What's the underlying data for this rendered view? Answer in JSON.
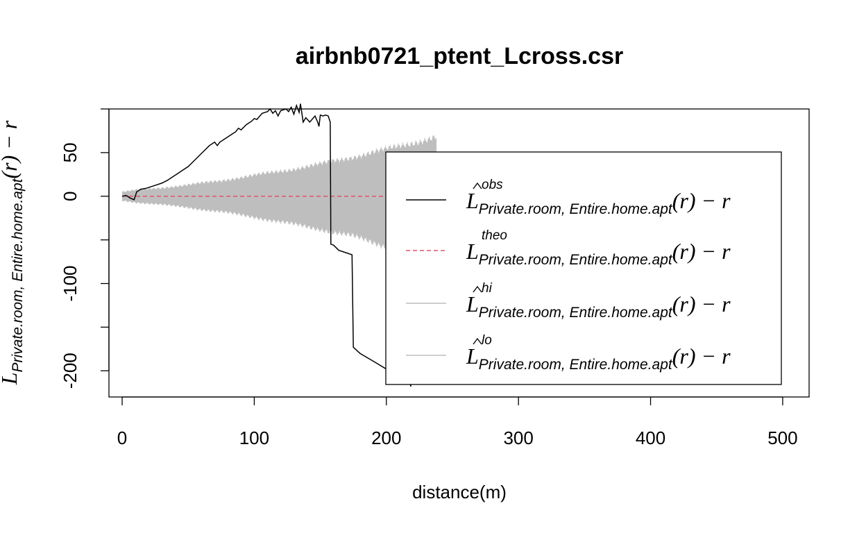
{
  "chart_data": {
    "type": "line",
    "title": "airbnb0721_ptent_Lcross.csr",
    "xlabel": "distance(m)",
    "ylabel": {
      "main": "L",
      "subscript": "Private.room, Entire.home.apt",
      "suffix": "(r) − r"
    },
    "xlim": [
      -10,
      520
    ],
    "ylim": [
      -230,
      100
    ],
    "x_ticks": [
      0,
      100,
      200,
      300,
      400,
      500
    ],
    "x_tick_labels": [
      "0",
      "100",
      "200",
      "300",
      "400",
      "500"
    ],
    "y_ticks": [
      -200,
      -150,
      -100,
      -50,
      0,
      50,
      100
    ],
    "y_tick_labels": [
      "-200",
      "",
      "-100",
      "",
      "0",
      "50",
      ""
    ],
    "grid": false,
    "legend_position": "right",
    "series": [
      {
        "name": "obs",
        "color": "#000000",
        "style": "solid",
        "x": [
          0,
          3,
          6,
          9,
          11,
          14,
          18,
          22,
          26,
          30,
          34,
          38,
          42,
          46,
          50,
          54,
          58,
          62,
          66,
          70,
          72,
          74,
          78,
          82,
          86,
          88,
          90,
          94,
          98,
          100,
          102,
          106,
          110,
          112,
          114,
          116,
          118,
          120,
          124,
          126,
          128,
          130,
          132,
          134,
          135,
          137,
          139,
          142,
          146,
          148,
          149,
          150,
          152,
          154,
          156,
          157.5,
          158,
          160,
          164,
          170,
          174,
          175,
          180,
          190,
          200,
          210,
          218,
          218.5,
          220,
          225,
          233
        ],
        "y": [
          0,
          1,
          -2,
          -4,
          5,
          8,
          9,
          11,
          13,
          15,
          18,
          22,
          26,
          30,
          34,
          40,
          46,
          52,
          58,
          62,
          58,
          62,
          66,
          70,
          74,
          78,
          76,
          82,
          86,
          89,
          88,
          95,
          97,
          100,
          95,
          98,
          92,
          98,
          100,
          97,
          102,
          94,
          104,
          96,
          106,
          85,
          90,
          85,
          92,
          85,
          80,
          93,
          92,
          93,
          92,
          85,
          -55,
          -56,
          -62,
          -65,
          -67,
          -173,
          -180,
          -189,
          -198,
          -207,
          -214,
          -218,
          -155,
          -160,
          -169
        ]
      },
      {
        "name": "theo",
        "color": "#df536b",
        "style": "dashed",
        "x": [
          0,
          300
        ],
        "y": [
          0,
          0
        ]
      },
      {
        "name": "hi",
        "color": "#bebebe",
        "style": "solid",
        "x": [
          0,
          10,
          25,
          50,
          75,
          100,
          125,
          150,
          175,
          200,
          225,
          238
        ],
        "y": [
          5,
          7,
          9,
          13,
          18,
          24,
          30,
          37,
          45,
          54,
          63,
          68
        ]
      },
      {
        "name": "lo",
        "color": "#bebebe",
        "style": "solid",
        "x": [
          0,
          10,
          25,
          50,
          75,
          100,
          125,
          150,
          175,
          200,
          225,
          238
        ],
        "y": [
          -5,
          -7,
          -9,
          -13,
          -18,
          -24,
          -31,
          -38,
          -46,
          -58,
          -75,
          -84
        ]
      }
    ],
    "legend": [
      {
        "hat": true,
        "superscript": "obs",
        "main": "L",
        "subscript": "Private.room, Entire.home.apt",
        "suffix": "(r) − r",
        "color": "#000000",
        "style": "solid"
      },
      {
        "hat": false,
        "superscript": "theo",
        "main": "L",
        "subscript": "Private.room, Entire.home.apt",
        "suffix": "(r) − r",
        "color": "#df536b",
        "style": "dashed"
      },
      {
        "hat": true,
        "superscript": "hi",
        "main": "L",
        "subscript": "Private.room, Entire.home.apt",
        "suffix": "(r) − r",
        "color": "#bebebe",
        "style": "solid"
      },
      {
        "hat": true,
        "superscript": "lo",
        "main": "L",
        "subscript": "Private.room, Entire.home.apt",
        "suffix": "(r) − r",
        "color": "#bebebe",
        "style": "solid"
      }
    ]
  }
}
